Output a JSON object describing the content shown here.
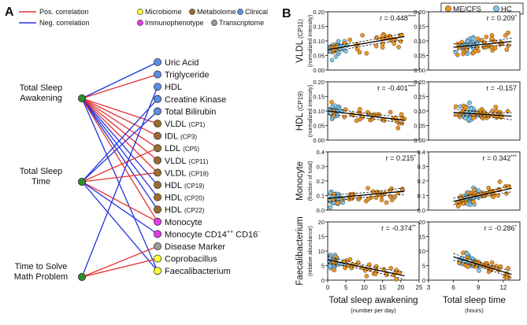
{
  "panel_a": {
    "label": "A",
    "legend": {
      "pos": "Pos. correlation",
      "neg": "Neg. correlation",
      "microbiome": "Microbiome",
      "metabolome": "Metabolome",
      "clinical": "Clinical",
      "immunophenotype": "Immunophenotype",
      "transcriptome": "Transcriptome"
    },
    "colors": {
      "pos": "#e53030",
      "neg": "#2233dd",
      "microbiome": "#ffff33",
      "metabolome": "#9c6b30",
      "clinical": "#5c8fe0",
      "immunophenotype": "#e83ae8",
      "transcriptome": "#9a9a9a",
      "sleep_node": "#2e8b2e"
    },
    "left_nodes": [
      {
        "line1": "Total Sleep",
        "line2": "Awakening"
      },
      {
        "line1": "Total Sleep",
        "line2": "Time"
      },
      {
        "line1": "Time to Solve",
        "line2": "Math Problem"
      }
    ],
    "right_nodes": [
      {
        "name": "Uric Acid",
        "sub": "",
        "sup": "",
        "sup2": "",
        "cat": "clinical"
      },
      {
        "name": "Triglyceride",
        "sub": "",
        "sup": "",
        "sup2": "",
        "cat": "clinical"
      },
      {
        "name": "HDL",
        "sub": "",
        "sup": "",
        "sup2": "",
        "cat": "clinical"
      },
      {
        "name": "Creatine Kinase",
        "sub": "",
        "sup": "",
        "sup2": "",
        "cat": "clinical"
      },
      {
        "name": "Total Bilirubin",
        "sub": "",
        "sup": "",
        "sup2": "",
        "cat": "clinical"
      },
      {
        "name": "VLDL",
        "sub": "(CP1)",
        "sup": "",
        "sup2": "",
        "cat": "metabolome"
      },
      {
        "name": "IDL",
        "sub": "(CP3)",
        "sup": "",
        "sup2": "",
        "cat": "metabolome"
      },
      {
        "name": "LDL",
        "sub": "(CP5)",
        "sup": "",
        "sup2": "",
        "cat": "metabolome"
      },
      {
        "name": "VLDL",
        "sub": "(CP11)",
        "sup": "",
        "sup2": "",
        "cat": "metabolome"
      },
      {
        "name": "VLDL",
        "sub": "(CP18)",
        "sup": "",
        "sup2": "",
        "cat": "metabolome"
      },
      {
        "name": "HDL",
        "sub": "(CP19)",
        "sup": "",
        "sup2": "",
        "cat": "metabolome"
      },
      {
        "name": "HDL",
        "sub": "(CP20)",
        "sup": "",
        "sup2": "",
        "cat": "metabolome"
      },
      {
        "name": "HDL",
        "sub": "(CP22)",
        "sup": "",
        "sup2": "",
        "cat": "metabolome"
      },
      {
        "name": "Monocyte",
        "sub": "",
        "sup": "",
        "sup2": "",
        "cat": "immunophenotype"
      },
      {
        "name": "Monocyte CD14",
        "sub": "",
        "sup": "++",
        "name2": " CD16",
        "sup2": "-",
        "cat": "immunophenotype"
      },
      {
        "name": "Disease Marker",
        "sub": "",
        "sup": "",
        "sup2": "",
        "cat": "transcriptome"
      },
      {
        "name": "Coprobacillus",
        "sub": "",
        "sup": "",
        "sup2": "",
        "cat": "microbiome"
      },
      {
        "name": "Faecalibacterium",
        "sub": "",
        "sup": "",
        "sup2": "",
        "cat": "microbiome"
      }
    ],
    "edges": [
      {
        "from": 0,
        "to": 0,
        "sign": "neg"
      },
      {
        "from": 0,
        "to": 1,
        "sign": "pos"
      },
      {
        "from": 0,
        "to": 5,
        "sign": "pos"
      },
      {
        "from": 0,
        "to": 6,
        "sign": "pos"
      },
      {
        "from": 0,
        "to": 7,
        "sign": "pos"
      },
      {
        "from": 0,
        "to": 8,
        "sign": "pos"
      },
      {
        "from": 0,
        "to": 9,
        "sign": "pos"
      },
      {
        "from": 0,
        "to": 10,
        "sign": "neg"
      },
      {
        "from": 0,
        "to": 11,
        "sign": "neg"
      },
      {
        "from": 0,
        "to": 12,
        "sign": "neg"
      },
      {
        "from": 0,
        "to": 13,
        "sign": "pos"
      },
      {
        "from": 0,
        "to": 17,
        "sign": "neg"
      },
      {
        "from": 1,
        "to": 3,
        "sign": "neg"
      },
      {
        "from": 1,
        "to": 4,
        "sign": "neg"
      },
      {
        "from": 1,
        "to": 7,
        "sign": "pos"
      },
      {
        "from": 1,
        "to": 9,
        "sign": "pos"
      },
      {
        "from": 1,
        "to": 13,
        "sign": "pos"
      },
      {
        "from": 1,
        "to": 14,
        "sign": "neg"
      },
      {
        "from": 1,
        "to": 17,
        "sign": "neg"
      },
      {
        "from": 2,
        "to": 2,
        "sign": "neg"
      },
      {
        "from": 2,
        "to": 15,
        "sign": "pos"
      },
      {
        "from": 2,
        "to": 16,
        "sign": "pos"
      }
    ]
  },
  "panel_b": {
    "label": "B",
    "legend": {
      "mecfs": "ME/CFS",
      "hc": "HC"
    },
    "colors": {
      "mecfs": "#f2961e",
      "hc": "#7ec8ec"
    },
    "rows": [
      {
        "title": "VLDL",
        "title_sub": "(CP11)",
        "subtitle": "(normalized intensity)",
        "ticks": [
          "0.00",
          "0.05",
          "0.10",
          "0.15",
          "0.20"
        ]
      },
      {
        "title": "HDL",
        "title_sub": "(CP19)",
        "subtitle": "(normalized intensity)",
        "ticks": [
          "0.00",
          "0.05",
          "0.10",
          "0.15",
          "0.20"
        ]
      },
      {
        "title": "Monocyte",
        "title_sub": "",
        "subtitle": "(fraction of total)",
        "ticks": [
          "0.0",
          "0.1",
          "0.2",
          "0.3",
          "0.4"
        ]
      },
      {
        "title": "Faecalibacterium",
        "title_sub": "",
        "subtitle": "(relative abundance)",
        "ticks": [
          "0",
          "5",
          "10",
          "15",
          "20"
        ]
      }
    ],
    "columns": [
      {
        "xlabel": "Total sleep awakening",
        "xsub": "(number per day)",
        "ticks": [
          "0",
          "5",
          "10",
          "15",
          "20",
          "25"
        ]
      },
      {
        "xlabel": "Total sleep time",
        "xsub": "(hours)",
        "ticks": [
          "3",
          "6",
          "9",
          "12"
        ]
      }
    ],
    "r_labels": [
      {
        "r": "r = 0.448",
        "stars": "****"
      },
      {
        "r": "r = 0.209",
        "stars": "*"
      },
      {
        "r": "r = -0.401",
        "stars": "****"
      },
      {
        "r": "r = -0.157",
        "stars": ""
      },
      {
        "r": "r = 0.215",
        "stars": "*"
      },
      {
        "r": "r = 0.342",
        "stars": "***"
      },
      {
        "r": "r = -0.374",
        "stars": "**"
      },
      {
        "r": "r = -0.286",
        "stars": "*"
      }
    ]
  },
  "chart_data": [
    {
      "type": "scatter",
      "title": "VLDL (CP11) vs Total sleep awakening",
      "xlabel": "Total sleep awakening (number per day)",
      "ylabel": "VLDL (CP11) (normalized intensity)",
      "xlim": [
        0,
        25
      ],
      "ylim": [
        0,
        0.2
      ],
      "annotation": "r = 0.448****",
      "fit": {
        "x": [
          0,
          21
        ],
        "y": [
          0.07,
          0.115
        ]
      }
    },
    {
      "type": "scatter",
      "title": "VLDL (CP11) vs Total sleep time",
      "xlabel": "Total sleep time (hours)",
      "ylabel": "VLDL (CP11) (normalized intensity)",
      "xlim": [
        3,
        14
      ],
      "ylim": [
        0,
        0.2
      ],
      "annotation": "r = 0.209*",
      "fit": {
        "x": [
          6,
          13
        ],
        "y": [
          0.078,
          0.098
        ]
      }
    },
    {
      "type": "scatter",
      "title": "HDL (CP19) vs Total sleep awakening",
      "xlabel": "Total sleep awakening (number per day)",
      "ylabel": "HDL (CP19) (normalized intensity)",
      "xlim": [
        0,
        25
      ],
      "ylim": [
        0,
        0.2
      ],
      "annotation": "r = -0.401****",
      "fit": {
        "x": [
          0,
          21
        ],
        "y": [
          0.1,
          0.068
        ]
      }
    },
    {
      "type": "scatter",
      "title": "HDL (CP19) vs Total sleep time",
      "xlabel": "Total sleep time (hours)",
      "ylabel": "HDL (CP19) (normalized intensity)",
      "xlim": [
        3,
        14
      ],
      "ylim": [
        0,
        0.2
      ],
      "annotation": "r = -0.157",
      "fit": {
        "x": [
          6,
          13
        ],
        "y": [
          0.095,
          0.082
        ]
      }
    },
    {
      "type": "scatter",
      "title": "Monocyte vs Total sleep awakening",
      "xlabel": "Total sleep awakening (number per day)",
      "ylabel": "Monocyte (fraction of total)",
      "xlim": [
        0,
        25
      ],
      "ylim": [
        0,
        0.4
      ],
      "annotation": "r = 0.215*",
      "fit": {
        "x": [
          0,
          21
        ],
        "y": [
          0.08,
          0.13
        ]
      }
    },
    {
      "type": "scatter",
      "title": "Monocyte vs Total sleep time",
      "xlabel": "Total sleep time (hours)",
      "ylabel": "Monocyte (fraction of total)",
      "xlim": [
        3,
        14
      ],
      "ylim": [
        0,
        0.4
      ],
      "annotation": "r = 0.342***",
      "fit": {
        "x": [
          6,
          13
        ],
        "y": [
          0.06,
          0.15
        ]
      }
    },
    {
      "type": "scatter",
      "title": "Faecalibacterium vs Total sleep awakening",
      "xlabel": "Total sleep awakening (number per day)",
      "ylabel": "Faecalibacterium (relative abundance)",
      "xlim": [
        0,
        25
      ],
      "ylim": [
        0,
        20
      ],
      "annotation": "r = -0.374**",
      "fit": {
        "x": [
          0,
          21
        ],
        "y": [
          7,
          1.5
        ]
      }
    },
    {
      "type": "scatter",
      "title": "Faecalibacterium vs Total sleep time",
      "xlabel": "Total sleep time (hours)",
      "ylabel": "Faecalibacterium (relative abundance)",
      "xlim": [
        3,
        14
      ],
      "ylim": [
        0,
        20
      ],
      "annotation": "r = -0.286*",
      "fit": {
        "x": [
          6,
          13
        ],
        "y": [
          8,
          2
        ]
      }
    }
  ]
}
